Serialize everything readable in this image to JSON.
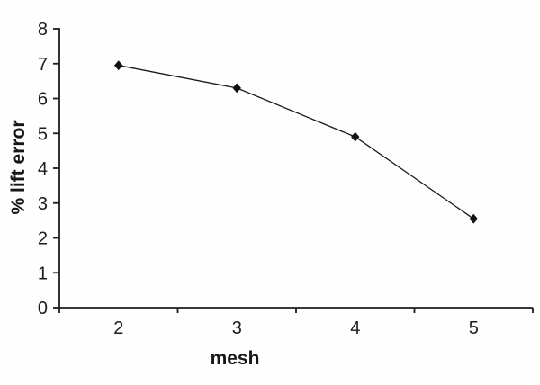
{
  "chart_data": {
    "type": "line",
    "categories": [
      "2",
      "3",
      "4",
      "5"
    ],
    "series": [
      {
        "name": "% lift error",
        "values": [
          6.95,
          6.3,
          4.9,
          2.55
        ]
      }
    ],
    "title": "",
    "xlabel": "mesh",
    "ylabel": "% lift error",
    "ylim": [
      0,
      8
    ],
    "yticks": [
      "0",
      "1",
      "2",
      "3",
      "4",
      "5",
      "6",
      "7",
      "8"
    ],
    "grid": false,
    "legend": "none",
    "marker": "diamond",
    "line_color": "#1a1a1a",
    "marker_color": "#111111",
    "axis_color": "#1c1c1c",
    "tick_label_color": "#1b1b1b",
    "background": "#fefefe"
  }
}
